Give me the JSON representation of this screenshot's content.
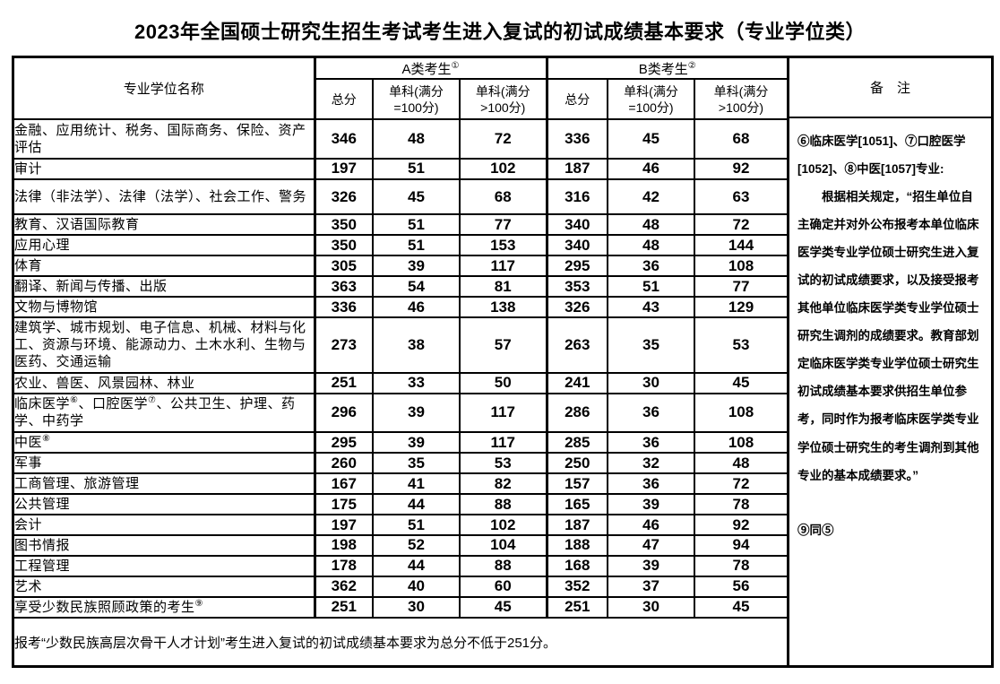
{
  "title": "2023年全国硕士研究生招生考试考生进入复试的初试成绩基本要求（专业学位类）",
  "table": {
    "name_header": "专业学位名称",
    "group_a": {
      "label": "A类考生",
      "sup": "①"
    },
    "group_b": {
      "label": "B类考生",
      "sup": "②"
    },
    "sub_headers": [
      "总分",
      "单科(满分\n=100分)",
      "单科(满分\n>100分)"
    ],
    "remark_header": "备　注",
    "rows": [
      {
        "name": "金融、应用统计、税务、国际商务、保险、资产评估",
        "a": [
          346,
          48,
          72
        ],
        "b": [
          336,
          45,
          68
        ]
      },
      {
        "name": "审计",
        "a": [
          197,
          51,
          102
        ],
        "b": [
          187,
          46,
          92
        ]
      },
      {
        "name": "法律（非法学）、法律（法学）、社会工作、警务",
        "a": [
          326,
          45,
          68
        ],
        "b": [
          316,
          42,
          63
        ]
      },
      {
        "name": "教育、汉语国际教育",
        "a": [
          350,
          51,
          77
        ],
        "b": [
          340,
          48,
          72
        ]
      },
      {
        "name": "应用心理",
        "a": [
          350,
          51,
          153
        ],
        "b": [
          340,
          48,
          144
        ]
      },
      {
        "name": "体育",
        "a": [
          305,
          39,
          117
        ],
        "b": [
          295,
          36,
          108
        ]
      },
      {
        "name": "翻译、新闻与传播、出版",
        "a": [
          363,
          54,
          81
        ],
        "b": [
          353,
          51,
          77
        ]
      },
      {
        "name": "文物与博物馆",
        "a": [
          336,
          46,
          138
        ],
        "b": [
          326,
          43,
          129
        ]
      },
      {
        "name": "建筑学、城市规划、电子信息、机械、材料与化工、资源与环境、能源动力、土木水利、生物与医药、交通运输",
        "a": [
          273,
          38,
          57
        ],
        "b": [
          263,
          35,
          53
        ]
      },
      {
        "name": "农业、兽医、风景园林、林业",
        "a": [
          251,
          33,
          50
        ],
        "b": [
          241,
          30,
          45
        ]
      },
      {
        "name": [
          "临床医学",
          {
            "s": "⑥"
          },
          "、口腔医学",
          {
            "s": "⑦"
          },
          "、公共卫生、护理、药学、中药学"
        ],
        "a": [
          296,
          39,
          117
        ],
        "b": [
          286,
          36,
          108
        ]
      },
      {
        "name": [
          "中医",
          {
            "s": "⑧"
          }
        ],
        "a": [
          295,
          39,
          117
        ],
        "b": [
          285,
          36,
          108
        ]
      },
      {
        "name": "军事",
        "a": [
          260,
          35,
          53
        ],
        "b": [
          250,
          32,
          48
        ]
      },
      {
        "name": "工商管理、旅游管理",
        "a": [
          167,
          41,
          82
        ],
        "b": [
          157,
          36,
          72
        ]
      },
      {
        "name": "公共管理",
        "a": [
          175,
          44,
          88
        ],
        "b": [
          165,
          39,
          78
        ]
      },
      {
        "name": "会计",
        "a": [
          197,
          51,
          102
        ],
        "b": [
          187,
          46,
          92
        ]
      },
      {
        "name": "图书情报",
        "a": [
          198,
          52,
          104
        ],
        "b": [
          188,
          47,
          94
        ]
      },
      {
        "name": "工程管理",
        "a": [
          178,
          44,
          88
        ],
        "b": [
          168,
          39,
          78
        ]
      },
      {
        "name": "艺术",
        "a": [
          362,
          40,
          60
        ],
        "b": [
          352,
          37,
          56
        ]
      },
      {
        "name": [
          "享受少数民族照顾政策的考生",
          {
            "s": "⑨"
          }
        ],
        "a": [
          251,
          30,
          45
        ],
        "b": [
          251,
          30,
          45
        ]
      }
    ],
    "footer": "报考“少数民族高层次骨干人才计划”考生进入复试的初试成绩基本要求为总分不低于251分。"
  },
  "remark": {
    "line1": "⑥临床医学[1051]、⑦口腔医学[1052]、⑧中医[1057]专业:",
    "para": "根据相关规定，“招生单位自主确定并对外公布报考本单位临床医学类专业学位硕士研究生进入复试的初试成绩要求，以及接受报考其他单位临床医学类专业学位硕士研究生调剂的成绩要求。教育部划定临床医学类专业学位硕士研究生初试成绩基本要求供招生单位参考，同时作为报考临床医学类专业学位硕士研究生的考生调剂到其他专业的基本成绩要求。”",
    "note9": "⑨同⑤"
  }
}
